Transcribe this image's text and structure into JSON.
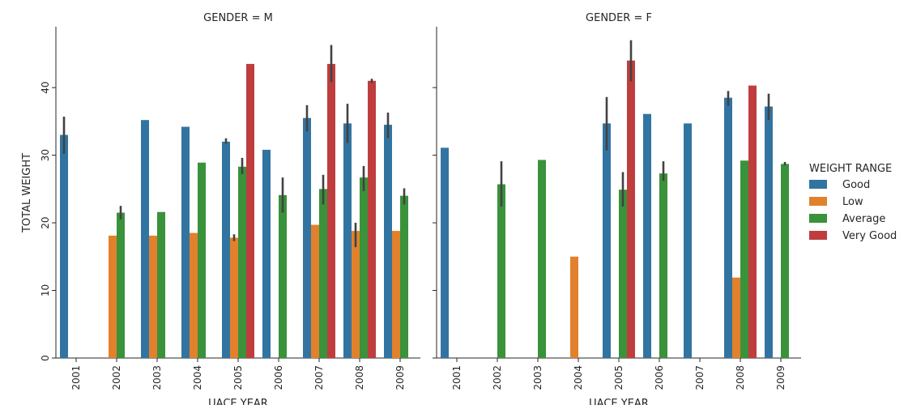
{
  "chart_data": [
    {
      "type": "bar",
      "title": "GENDER = M",
      "xlabel": "UACE YEAR",
      "ylabel": "TOTAL WEIGHT",
      "ylim": [
        0,
        49
      ],
      "yticks": [
        0,
        10,
        20,
        30,
        40
      ],
      "categories": [
        "2001",
        "2002",
        "2003",
        "2004",
        "2005",
        "2006",
        "2007",
        "2008",
        "2009"
      ],
      "series": [
        {
          "name": "Good",
          "values": [
            33.0,
            null,
            35.2,
            34.2,
            32.0,
            30.8,
            35.5,
            34.7,
            34.5
          ],
          "ci": [
            [
              30.2,
              35.7
            ],
            null,
            null,
            null,
            [
              31.7,
              32.5
            ],
            null,
            [
              33.5,
              37.4
            ],
            [
              31.8,
              37.6
            ],
            [
              32.5,
              36.3
            ]
          ]
        },
        {
          "name": "Low",
          "values": [
            null,
            18.1,
            18.1,
            18.5,
            17.8,
            null,
            19.7,
            18.8,
            18.8
          ],
          "ci": [
            null,
            null,
            null,
            null,
            [
              17.3,
              18.3
            ],
            null,
            null,
            [
              16.4,
              20.0
            ],
            null
          ]
        },
        {
          "name": "Average",
          "values": [
            null,
            21.5,
            21.6,
            28.9,
            28.3,
            24.1,
            25.0,
            26.7,
            24.0
          ],
          "ci": [
            null,
            [
              20.5,
              22.5
            ],
            null,
            null,
            [
              27.2,
              29.6
            ],
            [
              21.5,
              26.7
            ],
            [
              22.7,
              27.1
            ],
            [
              24.7,
              28.4
            ],
            [
              22.7,
              25.1
            ]
          ]
        },
        {
          "name": "Very Good",
          "values": [
            null,
            null,
            null,
            null,
            43.5,
            null,
            43.5,
            41.0,
            null
          ],
          "ci": [
            null,
            null,
            null,
            null,
            null,
            null,
            [
              40.8,
              46.3
            ],
            [
              40.7,
              41.3
            ],
            null
          ]
        }
      ]
    },
    {
      "type": "bar",
      "title": "GENDER = F",
      "xlabel": "UACE YEAR",
      "ylabel": "",
      "ylim": [
        0,
        49
      ],
      "yticks": [
        0,
        10,
        20,
        30,
        40
      ],
      "categories": [
        "2001",
        "2002",
        "2003",
        "2004",
        "2005",
        "2006",
        "2007",
        "2008",
        "2009"
      ],
      "series": [
        {
          "name": "Good",
          "values": [
            31.1,
            null,
            null,
            null,
            34.7,
            36.1,
            34.7,
            38.5,
            37.2
          ],
          "ci": [
            null,
            null,
            null,
            null,
            [
              30.7,
              38.6
            ],
            null,
            null,
            [
              37.3,
              39.5
            ],
            [
              35.2,
              39.1
            ]
          ]
        },
        {
          "name": "Low",
          "values": [
            null,
            null,
            null,
            15.0,
            null,
            null,
            null,
            11.9,
            null
          ],
          "ci": [
            null,
            null,
            null,
            null,
            null,
            null,
            null,
            null,
            null
          ]
        },
        {
          "name": "Average",
          "values": [
            null,
            25.7,
            29.3,
            null,
            24.9,
            27.3,
            null,
            29.2,
            28.7
          ],
          "ci": [
            null,
            [
              22.4,
              29.1
            ],
            null,
            null,
            [
              22.4,
              27.5
            ],
            [
              26.2,
              29.1
            ],
            null,
            null,
            [
              28.5,
              29.0
            ]
          ]
        },
        {
          "name": "Very Good",
          "values": [
            null,
            null,
            null,
            null,
            44.0,
            null,
            null,
            40.3,
            null
          ],
          "ci": [
            null,
            null,
            null,
            null,
            [
              40.9,
              47.0
            ],
            null,
            null,
            null,
            null
          ]
        }
      ]
    }
  ],
  "legend": {
    "title": "WEIGHT RANGE",
    "position": "right",
    "entries": [
      {
        "name": "Good",
        "color": "#3274a1"
      },
      {
        "name": "Low",
        "color": "#e1812c"
      },
      {
        "name": "Average",
        "color": "#3a923a"
      },
      {
        "name": "Very Good",
        "color": "#c03d3e"
      }
    ]
  },
  "colors": {
    "Good": "#3274a1",
    "Low": "#e1812c",
    "Average": "#3a923a",
    "Very Good": "#c03d3e",
    "errorbar": "#424242",
    "axis": "#262626"
  }
}
